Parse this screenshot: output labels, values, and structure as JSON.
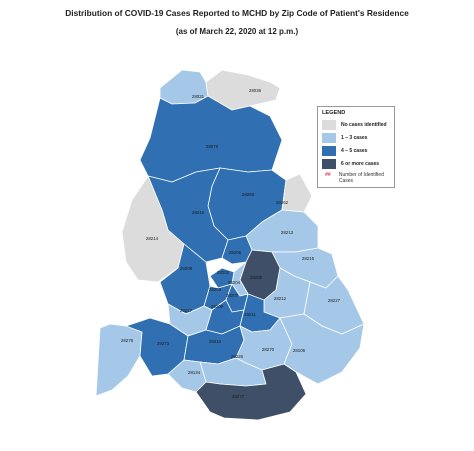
{
  "title": "Distribution of COVID-19 Cases Reported to MCHD by Zip Code of Patient's Residence",
  "subtitle": "(as of March 22, 2020 at 12 p.m.)",
  "colors": {
    "none": "#dcdcdc",
    "low": "#a6c8e8",
    "mid": "#2f6fb2",
    "high": "#3f4f68"
  },
  "legend": {
    "title": "LEGEND",
    "items": [
      {
        "label": "No cases identified",
        "category": "none"
      },
      {
        "label": "1 – 3 cases",
        "category": "low"
      },
      {
        "label": "4 – 5 cases",
        "category": "mid"
      },
      {
        "label": "6 or more cases",
        "category": "high"
      }
    ],
    "note_marker": "##",
    "note_text": "Number of Identified Cases"
  },
  "zip_codes": [
    {
      "zip": "28031",
      "category": "low"
    },
    {
      "zip": "28036",
      "category": "none"
    },
    {
      "zip": "28078",
      "category": "mid"
    },
    {
      "zip": "28269",
      "category": "mid"
    },
    {
      "zip": "28216",
      "category": "mid"
    },
    {
      "zip": "28262",
      "category": "none"
    },
    {
      "zip": "28214",
      "category": "none"
    },
    {
      "zip": "28213",
      "category": "low"
    },
    {
      "zip": "28206",
      "category": "mid"
    },
    {
      "zip": "28215",
      "category": "low"
    },
    {
      "zip": "28208",
      "category": "mid"
    },
    {
      "zip": "28202",
      "category": "mid"
    },
    {
      "zip": "28205",
      "category": "high"
    },
    {
      "zip": "28204",
      "category": "low"
    },
    {
      "zip": "28203",
      "category": "mid"
    },
    {
      "zip": "28207",
      "category": "mid"
    },
    {
      "zip": "28212",
      "category": "low"
    },
    {
      "zip": "28227",
      "category": "low"
    },
    {
      "zip": "28217",
      "category": "low"
    },
    {
      "zip": "28209",
      "category": "mid"
    },
    {
      "zip": "28211",
      "category": "mid"
    },
    {
      "zip": "28278",
      "category": "low"
    },
    {
      "zip": "28273",
      "category": "mid"
    },
    {
      "zip": "28210",
      "category": "mid"
    },
    {
      "zip": "28270",
      "category": "low"
    },
    {
      "zip": "28105",
      "category": "low"
    },
    {
      "zip": "28226",
      "category": "low"
    },
    {
      "zip": "28134",
      "category": "low"
    },
    {
      "zip": "28277",
      "category": "high"
    }
  ]
}
